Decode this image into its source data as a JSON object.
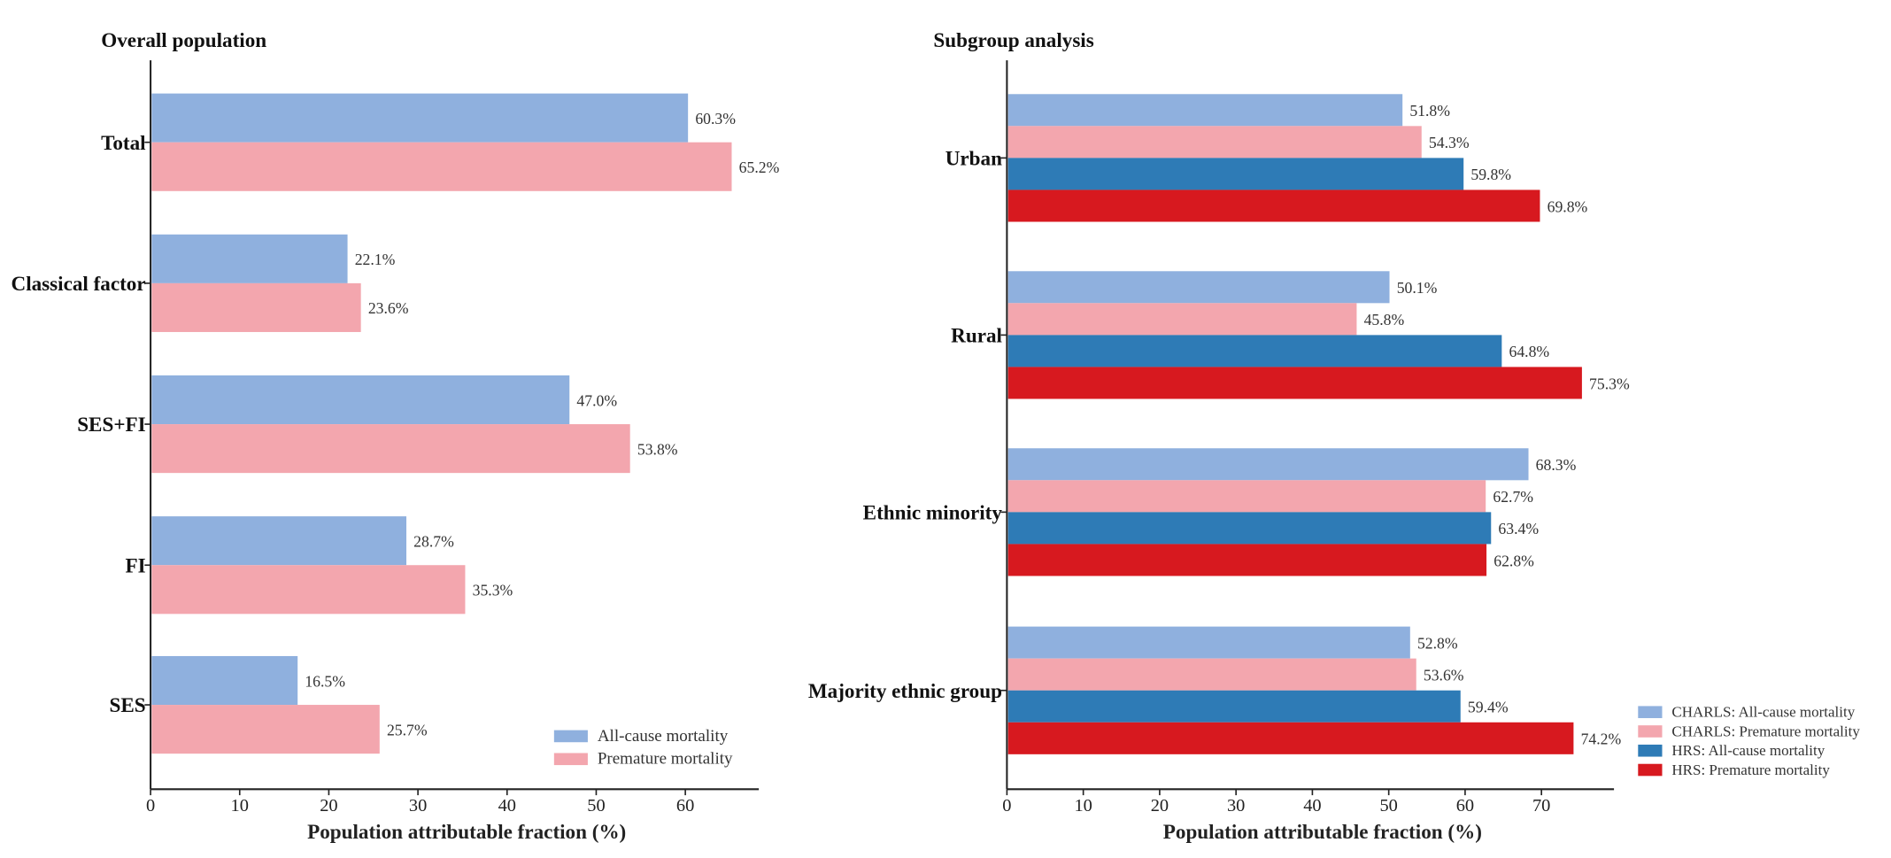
{
  "chart_data": [
    {
      "type": "bar",
      "orientation": "horizontal",
      "title": "Overall population",
      "xlabel": "Population attributable fraction (%)",
      "xlim": [
        0,
        68
      ],
      "xticks": [
        "0",
        "10",
        "20",
        "30",
        "40",
        "50",
        "60"
      ],
      "categories": [
        "Total",
        "Classical factor",
        "SES+FI",
        "FI",
        "SES"
      ],
      "series": [
        {
          "name": "All-cause mortality",
          "color": "#8fb0de",
          "values": [
            60.3,
            22.1,
            47.0,
            28.7,
            16.5
          ],
          "labels": [
            "60.3%",
            "22.1%",
            "47.0%",
            "28.7%",
            "16.5%"
          ]
        },
        {
          "name": "Premature  mortality",
          "color": "#f3a6ae",
          "values": [
            65.2,
            23.6,
            53.8,
            35.3,
            25.7
          ],
          "labels": [
            "65.2%",
            "23.6%",
            "53.8%",
            "35.3%",
            "25.7%"
          ]
        }
      ],
      "legend": "bottom-right"
    },
    {
      "type": "bar",
      "orientation": "horizontal",
      "title": "Subgroup analysis",
      "xlabel": "Population attributable fraction (%)",
      "xlim": [
        0,
        79
      ],
      "xticks": [
        "0",
        "10",
        "20",
        "30",
        "40",
        "50",
        "60",
        "70"
      ],
      "categories": [
        "Urban",
        "Rural",
        "Ethnic minority",
        "Majority ethnic group"
      ],
      "series": [
        {
          "name": "CHARLS: All-cause mortality",
          "color": "#8fb0de",
          "values": [
            51.8,
            50.1,
            68.3,
            52.8
          ],
          "labels": [
            "51.8%",
            "50.1%",
            "68.3%",
            "52.8%"
          ]
        },
        {
          "name": "CHARLS: Premature mortality",
          "color": "#f3a6ae",
          "values": [
            54.3,
            45.8,
            62.7,
            53.6
          ],
          "labels": [
            "54.3%",
            "45.8%",
            "62.7%",
            "53.6%"
          ]
        },
        {
          "name": "HRS: All-cause mortality",
          "color": "#2e7bb6",
          "values": [
            59.8,
            64.8,
            63.4,
            59.4
          ],
          "labels": [
            "59.8%",
            "64.8%",
            "63.4%",
            "59.4%"
          ]
        },
        {
          "name": "HRS: Premature mortality",
          "color": "#d7191f",
          "values": [
            69.8,
            75.3,
            62.8,
            74.2
          ],
          "labels": [
            "69.8%",
            "75.3%",
            "62.8%",
            "74.2%"
          ]
        }
      ],
      "legend": "bottom-right"
    }
  ]
}
